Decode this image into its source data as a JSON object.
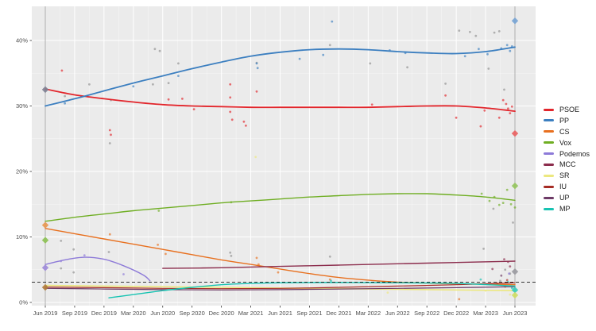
{
  "chart_data": {
    "type": "line",
    "title": "",
    "xlabel": "",
    "ylabel": "",
    "grid": true,
    "legend_position": "right",
    "panel_bg": "#ebebeb",
    "gridline_color": "#ffffff",
    "axis_text_color": "#4d4d4d",
    "x_axis": {
      "tick_labels": [
        "Jun 2019",
        "Sep 2019",
        "Dec 2019",
        "Mar 2020",
        "Jun 2020",
        "Sep 2020",
        "Dec 2020",
        "Mar 2021",
        "Jun 2021",
        "Sep 2021",
        "Dec 2021",
        "Mar 2022",
        "Jun 2022",
        "Sep 2022",
        "Dec 2022",
        "Mar 2023",
        "Jun 2023"
      ],
      "tick_months": [
        0,
        3,
        6,
        9,
        12,
        15,
        18,
        21,
        24,
        27,
        30,
        33,
        36,
        39,
        42,
        45,
        48
      ]
    },
    "y_axis": {
      "tick_labels": [
        "0%",
        "10%",
        "20%",
        "30%",
        "40%"
      ],
      "tick_values": [
        0,
        10,
        20,
        30,
        40
      ],
      "range": [
        -0.5,
        45.2
      ]
    },
    "threshold_line": {
      "value": 3.1,
      "color": "#1a1a1a",
      "style": "dashed"
    },
    "event_lines": {
      "months": [
        0,
        48
      ],
      "color": "#a6a6a6"
    },
    "colors": {
      "PSOE": "#e2252b",
      "PP": "#3c7fc0",
      "CS": "#e8701f",
      "Vox": "#6fae23",
      "Podemos": "#8d7ad8",
      "MCC": "#8c2d4d",
      "SR": "#ece87f",
      "IU": "#a62c25",
      "UP": "#6d3a66",
      "MP": "#17c3b2",
      "gray": "#8f8f8f"
    },
    "series": [
      {
        "name": "PSOE",
        "color": "#e2252b",
        "width": 1.8,
        "draw_order": 9,
        "x": [
          0,
          3,
          6,
          9,
          12,
          15,
          18,
          21,
          24,
          27,
          30,
          33,
          36,
          39,
          42,
          45,
          48
        ],
        "y": [
          32.6,
          31.7,
          31.1,
          30.6,
          30.2,
          30.0,
          29.9,
          29.8,
          29.8,
          29.8,
          29.8,
          29.8,
          29.9,
          30.0,
          30.0,
          29.7,
          29.2
        ]
      },
      {
        "name": "PP",
        "color": "#3c7fc0",
        "width": 1.8,
        "draw_order": 10,
        "x": [
          0,
          3,
          6,
          9,
          12,
          15,
          18,
          21,
          24,
          27,
          30,
          33,
          36,
          39,
          42,
          45,
          48
        ],
        "y": [
          30.0,
          31.1,
          32.3,
          33.5,
          34.6,
          35.7,
          36.7,
          37.6,
          38.2,
          38.6,
          38.7,
          38.6,
          38.3,
          38.1,
          38.0,
          38.3,
          39.0
        ]
      },
      {
        "name": "CS",
        "color": "#e8701f",
        "width": 1.4,
        "draw_order": 1,
        "x": [
          0,
          3,
          6,
          9,
          12,
          15,
          18,
          21,
          24,
          27,
          30,
          33,
          36,
          39,
          42,
          45,
          48
        ],
        "y": [
          11.3,
          10.5,
          9.7,
          8.9,
          8.1,
          7.3,
          6.5,
          5.8,
          5.1,
          4.4,
          3.8,
          3.4,
          3.1,
          2.95,
          2.85,
          2.8,
          2.7
        ]
      },
      {
        "name": "Vox",
        "color": "#6fae23",
        "width": 1.4,
        "draw_order": 2,
        "x": [
          0,
          3,
          6,
          9,
          12,
          15,
          18,
          21,
          24,
          27,
          30,
          33,
          36,
          39,
          42,
          45,
          48
        ],
        "y": [
          12.4,
          13.0,
          13.5,
          14.0,
          14.4,
          14.8,
          15.2,
          15.5,
          15.8,
          16.1,
          16.3,
          16.5,
          16.6,
          16.6,
          16.4,
          16.1,
          15.6
        ]
      },
      {
        "name": "Podemos",
        "color": "#8d7ad8",
        "width": 1.4,
        "draw_order": 3,
        "x": [
          0,
          2,
          4,
          6,
          8,
          10,
          10.7
        ],
        "y": [
          5.8,
          6.5,
          6.9,
          6.6,
          5.6,
          4.2,
          3.3
        ]
      },
      {
        "name": "MCC",
        "color": "#8c2d4d",
        "width": 1.4,
        "draw_order": 8,
        "x": [
          12,
          18,
          24,
          30,
          36,
          42,
          48
        ],
        "y": [
          5.2,
          5.3,
          5.5,
          5.7,
          5.9,
          6.1,
          6.3
        ]
      },
      {
        "name": "SR",
        "color": "#ece87f",
        "width": 1.6,
        "draw_order": 4,
        "x": [
          0,
          6,
          12,
          18,
          24,
          30,
          36,
          42,
          48
        ],
        "y": [
          2.6,
          2.5,
          2.4,
          2.3,
          2.2,
          2.1,
          2.0,
          1.9,
          1.8
        ]
      },
      {
        "name": "IU",
        "color": "#a62c25",
        "width": 1.2,
        "draw_order": 5,
        "x": [
          0,
          6,
          12,
          18,
          24,
          30,
          36,
          42,
          48
        ],
        "y": [
          2.35,
          2.25,
          2.15,
          2.1,
          2.15,
          2.3,
          2.5,
          2.7,
          3.0
        ]
      },
      {
        "name": "UP",
        "color": "#6d3a66",
        "width": 1.2,
        "draw_order": 6,
        "x": [
          0,
          6,
          12,
          18,
          24,
          30,
          36,
          42,
          48
        ],
        "y": [
          2.15,
          2.05,
          1.95,
          1.9,
          1.95,
          2.05,
          2.15,
          2.25,
          2.4
        ]
      },
      {
        "name": "MP",
        "color": "#17c3b2",
        "width": 1.4,
        "draw_order": 7,
        "x": [
          6.5,
          9,
          12,
          15,
          18,
          21,
          24,
          30,
          36,
          42,
          48
        ],
        "y": [
          0.7,
          1.2,
          1.8,
          2.3,
          2.7,
          2.9,
          3.0,
          3.05,
          3.0,
          2.9,
          2.5
        ]
      }
    ],
    "election_diamonds": [
      {
        "m": 0,
        "v": 32.5,
        "color": "#7d7f92",
        "name": "result-2019-psoe"
      },
      {
        "m": 0,
        "v": 11.8,
        "color": "#e8964f",
        "name": "result-2019-cs"
      },
      {
        "m": 0,
        "v": 9.5,
        "color": "#8cc152",
        "name": "result-2019-vox"
      },
      {
        "m": 0,
        "v": 5.3,
        "color": "#9d8ad9",
        "name": "result-2019-podemos"
      },
      {
        "m": 0,
        "v": 2.3,
        "color": "#b07a3a",
        "name": "result-2019-iu"
      },
      {
        "m": 48,
        "v": 43.0,
        "color": "#76a3d4",
        "name": "result-2023-pp"
      },
      {
        "m": 48,
        "v": 25.8,
        "color": "#ea5f5f",
        "name": "result-2023-psoe"
      },
      {
        "m": 48,
        "v": 17.8,
        "color": "#93c45b",
        "name": "result-2023-vox"
      },
      {
        "m": 48,
        "v": 4.7,
        "color": "#9a9aa0",
        "name": "result-2023-gray"
      },
      {
        "m": 48,
        "v": 1.9,
        "color": "#35cdbd",
        "name": "result-2023-mp"
      },
      {
        "m": 48,
        "v": 1.1,
        "color": "#cede62",
        "name": "result-2023-sr"
      }
    ],
    "poll_dots": {
      "gray": [
        [
          2,
          31.5
        ],
        [
          4.5,
          33.3
        ],
        [
          6.6,
          24.3
        ],
        [
          6.7,
          30.9
        ],
        [
          11.2,
          38.7
        ],
        [
          11.7,
          38.4
        ],
        [
          11,
          33.3
        ],
        [
          12.6,
          33.5
        ],
        [
          1.6,
          9.4
        ],
        [
          2.9,
          8.1
        ],
        [
          6.5,
          7.7
        ],
        [
          1.6,
          5.2
        ],
        [
          2.9,
          4.6
        ],
        [
          13.6,
          36.5
        ],
        [
          21.6,
          36.6
        ],
        [
          29.1,
          39.3
        ],
        [
          33.2,
          36.5
        ],
        [
          37,
          35.9
        ],
        [
          40.9,
          33.4
        ],
        [
          42.3,
          41.5
        ],
        [
          43.4,
          41.3
        ],
        [
          44,
          40.7
        ],
        [
          45.9,
          41.2
        ],
        [
          46.4,
          41.4
        ],
        [
          45.3,
          35.7
        ],
        [
          46.9,
          32.5
        ],
        [
          45.8,
          14.3
        ],
        [
          47.8,
          12.2
        ],
        [
          44.8,
          8.2
        ],
        [
          46.5,
          3.3
        ],
        [
          47,
          5.0
        ],
        [
          18.9,
          7.6
        ],
        [
          19,
          7.1
        ],
        [
          29.1,
          7.0
        ],
        [
          47.5,
          4.4
        ]
      ],
      "PSOE": [
        [
          1.7,
          35.4
        ],
        [
          6.6,
          26.3
        ],
        [
          6.7,
          25.6
        ],
        [
          12.6,
          31.0
        ],
        [
          14,
          31.1
        ],
        [
          15.2,
          29.5
        ],
        [
          18.9,
          33.3
        ],
        [
          18.9,
          31.3
        ],
        [
          18.9,
          29.1
        ],
        [
          19.1,
          27.9
        ],
        [
          20.3,
          27.6
        ],
        [
          20.5,
          27.0
        ],
        [
          21.6,
          32.2
        ],
        [
          33.4,
          30.2
        ],
        [
          40.9,
          31.6
        ],
        [
          42,
          28.2
        ],
        [
          44.5,
          26.9
        ],
        [
          44.9,
          29.3
        ],
        [
          46.4,
          28.2
        ],
        [
          46.8,
          30.9
        ],
        [
          47.1,
          30.3
        ],
        [
          47.3,
          29.6
        ],
        [
          47.5,
          28.9
        ],
        [
          47.7,
          29.9
        ]
      ],
      "PP": [
        [
          2,
          30.4
        ],
        [
          9,
          33.0
        ],
        [
          13.6,
          34.6
        ],
        [
          21.6,
          36.5
        ],
        [
          21.7,
          35.8
        ],
        [
          26,
          37.2
        ],
        [
          29.3,
          42.9
        ],
        [
          28.4,
          37.8
        ],
        [
          35.2,
          38.5
        ],
        [
          36.8,
          38.1
        ],
        [
          42.9,
          37.6
        ],
        [
          44.3,
          38.7
        ],
        [
          45.2,
          37.9
        ],
        [
          46.6,
          38.8
        ],
        [
          47.2,
          39.3
        ],
        [
          47.5,
          38.4
        ],
        [
          47.7,
          39.1
        ]
      ],
      "Vox": [
        [
          11.6,
          14.0
        ],
        [
          19,
          15.3
        ],
        [
          44.6,
          16.6
        ],
        [
          45.4,
          15.5
        ],
        [
          45.9,
          16.1
        ],
        [
          46.4,
          14.9
        ],
        [
          46.8,
          15.2
        ],
        [
          47.2,
          17.2
        ],
        [
          47.6,
          15.0
        ],
        [
          48,
          14.5
        ]
      ],
      "CS": [
        [
          6.6,
          10.4
        ],
        [
          11.5,
          8.8
        ],
        [
          12.3,
          7.4
        ],
        [
          21.6,
          6.8
        ],
        [
          21.8,
          5.8
        ],
        [
          23.8,
          4.6
        ],
        [
          29.1,
          3.5
        ],
        [
          42.3,
          0.5
        ],
        [
          47,
          2.4
        ]
      ],
      "Podemos": [
        [
          1.6,
          6.3
        ],
        [
          4,
          7.2
        ],
        [
          8,
          4.3
        ],
        [
          47.4,
          4.4
        ]
      ],
      "MCC": [
        [
          45.7,
          5.1
        ],
        [
          46.9,
          6.6
        ],
        [
          47.3,
          6.2
        ],
        [
          47.5,
          5.5
        ]
      ],
      "SR": [
        [
          21.5,
          22.2
        ],
        [
          35,
          1.5
        ],
        [
          45,
          1.8
        ],
        [
          47.5,
          1.2
        ]
      ],
      "IU": [
        [
          46.2,
          2.9
        ],
        [
          47.2,
          3.4
        ]
      ],
      "UP": [
        [
          46.6,
          4.1
        ]
      ],
      "MP": [
        [
          29.2,
          3.3
        ],
        [
          44.5,
          3.5
        ],
        [
          47.3,
          3.1
        ],
        [
          47.7,
          2.2
        ]
      ]
    }
  },
  "legend": {
    "items": [
      {
        "label": "PSOE",
        "color": "#e2252b"
      },
      {
        "label": "PP",
        "color": "#3c7fc0"
      },
      {
        "label": "CS",
        "color": "#e8701f"
      },
      {
        "label": "Vox",
        "color": "#6fae23"
      },
      {
        "label": "Podemos",
        "color": "#8d7ad8"
      },
      {
        "label": "MCC",
        "color": "#8c2d4d"
      },
      {
        "label": "SR",
        "color": "#ece87f"
      },
      {
        "label": "IU",
        "color": "#a62c25"
      },
      {
        "label": "UP",
        "color": "#6d3a66"
      },
      {
        "label": "MP",
        "color": "#17c3b2"
      }
    ]
  }
}
